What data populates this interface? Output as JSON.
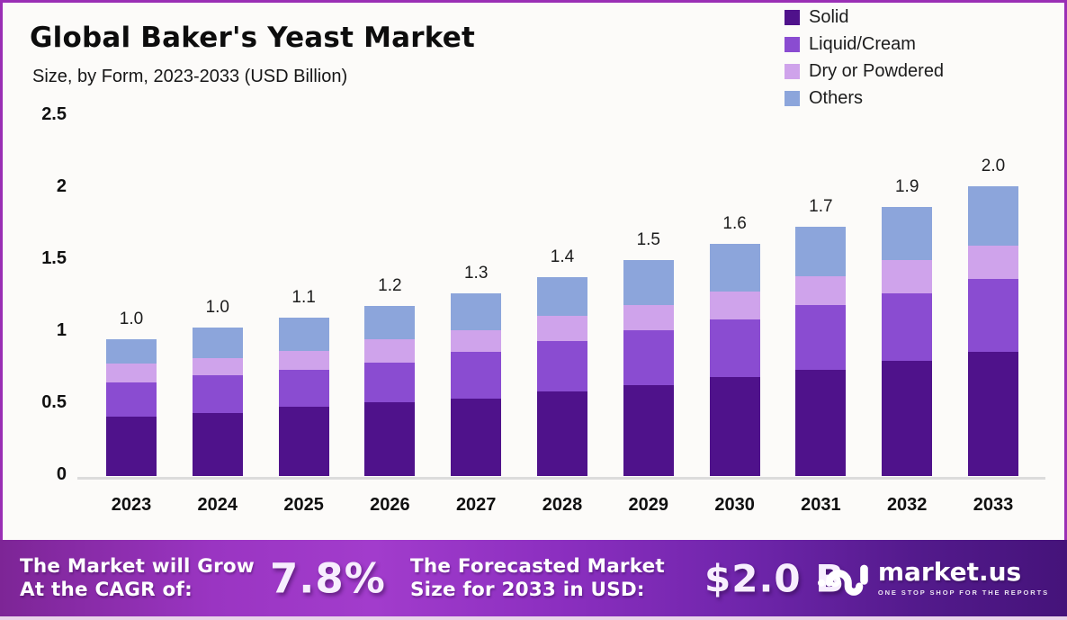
{
  "header": {
    "title": "Global Baker's Yeast  Market",
    "subtitle": "Size, by Form, 2023-2033 (USD Billion)"
  },
  "chart_data": {
    "type": "bar",
    "stacked": true,
    "title": "Global Baker's Yeast Market Size, by Form, 2023-2033 (USD Billion)",
    "xlabel": "",
    "ylabel": "",
    "ylim": [
      0,
      2.5
    ],
    "grid": false,
    "legend_position": "top-right",
    "categories": [
      "2023",
      "2024",
      "2025",
      "2026",
      "2027",
      "2028",
      "2029",
      "2030",
      "2031",
      "2032",
      "2033"
    ],
    "series": [
      {
        "name": "Solid",
        "color": "#4f128b",
        "values": [
          0.41,
          0.44,
          0.48,
          0.51,
          0.54,
          0.59,
          0.63,
          0.69,
          0.74,
          0.8,
          0.86
        ]
      },
      {
        "name": "Liquid/Cream",
        "color": "#8a4cd1",
        "values": [
          0.24,
          0.26,
          0.26,
          0.28,
          0.32,
          0.35,
          0.38,
          0.4,
          0.45,
          0.47,
          0.51
        ]
      },
      {
        "name": "Dry or Powdered",
        "color": "#cfa3eb",
        "values": [
          0.13,
          0.12,
          0.13,
          0.16,
          0.15,
          0.17,
          0.18,
          0.19,
          0.2,
          0.23,
          0.23
        ]
      },
      {
        "name": "Others",
        "color": "#8ca5db",
        "values": [
          0.17,
          0.21,
          0.23,
          0.23,
          0.26,
          0.27,
          0.31,
          0.33,
          0.34,
          0.37,
          0.41
        ]
      }
    ],
    "total_labels": [
      "1.0",
      "1.0",
      "1.1",
      "1.2",
      "1.3",
      "1.4",
      "1.5",
      "1.6",
      "1.7",
      "1.9",
      "2.0"
    ],
    "y_ticks": [
      "0",
      "0.5",
      "1",
      "1.5",
      "2",
      "2.5"
    ]
  },
  "footer": {
    "cagr_label_line1": "The Market will Grow",
    "cagr_label_line2": "At the CAGR of:",
    "cagr_value": "7.8%",
    "forecast_label_line1": "The Forecasted Market",
    "forecast_label_line2": "Size for 2033 in USD:",
    "forecast_value": "$2.0 B",
    "brand": {
      "name": "market.us",
      "tagline": "ONE STOP SHOP FOR THE REPORTS"
    }
  },
  "colors": {
    "background": "#fcfbf9",
    "frame_border": "#9a2fb5",
    "axis_line": "#dcdcdc",
    "banner_left": "#7d2596",
    "banner_mid": "#a23ccc",
    "banner_right": "#45137a",
    "bottom_strip": "#e9d3ea"
  }
}
